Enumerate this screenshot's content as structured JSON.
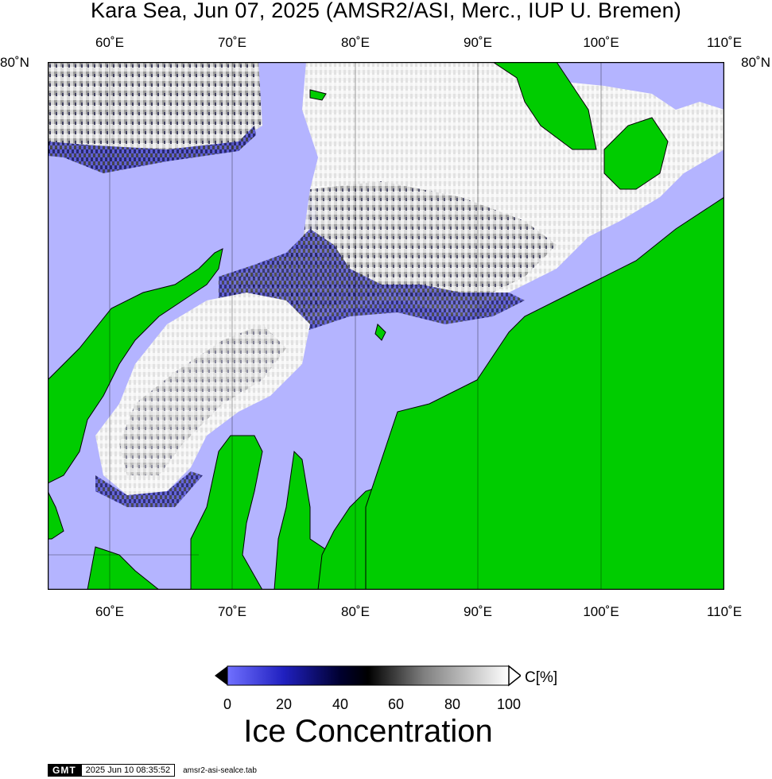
{
  "title": "Kara Sea, Jun 07, 2025 (AMSR2/ASI, Merc., IUP U. Bremen)",
  "lon_labels": [
    "60˚E",
    "70˚E",
    "80˚E",
    "90˚E",
    "100˚E",
    "110˚E"
  ],
  "lat_label": "80˚N",
  "map": {
    "lon_range": [
      55,
      110
    ],
    "lat_top": 80,
    "colors": {
      "water_open": "#b4b4ff",
      "land": "#00cc00",
      "ice_full": "#ffffff",
      "land_edge": "#000000"
    }
  },
  "colorbar": {
    "unit": "C[%]",
    "ticks": [
      "0",
      "20",
      "40",
      "60",
      "80",
      "100"
    ],
    "title": "Ice Concentration",
    "stops": [
      {
        "v": 0,
        "c": "#7070ff"
      },
      {
        "v": 20,
        "c": "#2020c0"
      },
      {
        "v": 40,
        "c": "#000030"
      },
      {
        "v": 50,
        "c": "#000000"
      },
      {
        "v": 70,
        "c": "#808080"
      },
      {
        "v": 100,
        "c": "#ffffff"
      }
    ]
  },
  "footer": {
    "logo": "GMT",
    "timestamp": "2025 Jun 10 08:35:52",
    "file": "amsr2-asi-sealce.tab"
  }
}
